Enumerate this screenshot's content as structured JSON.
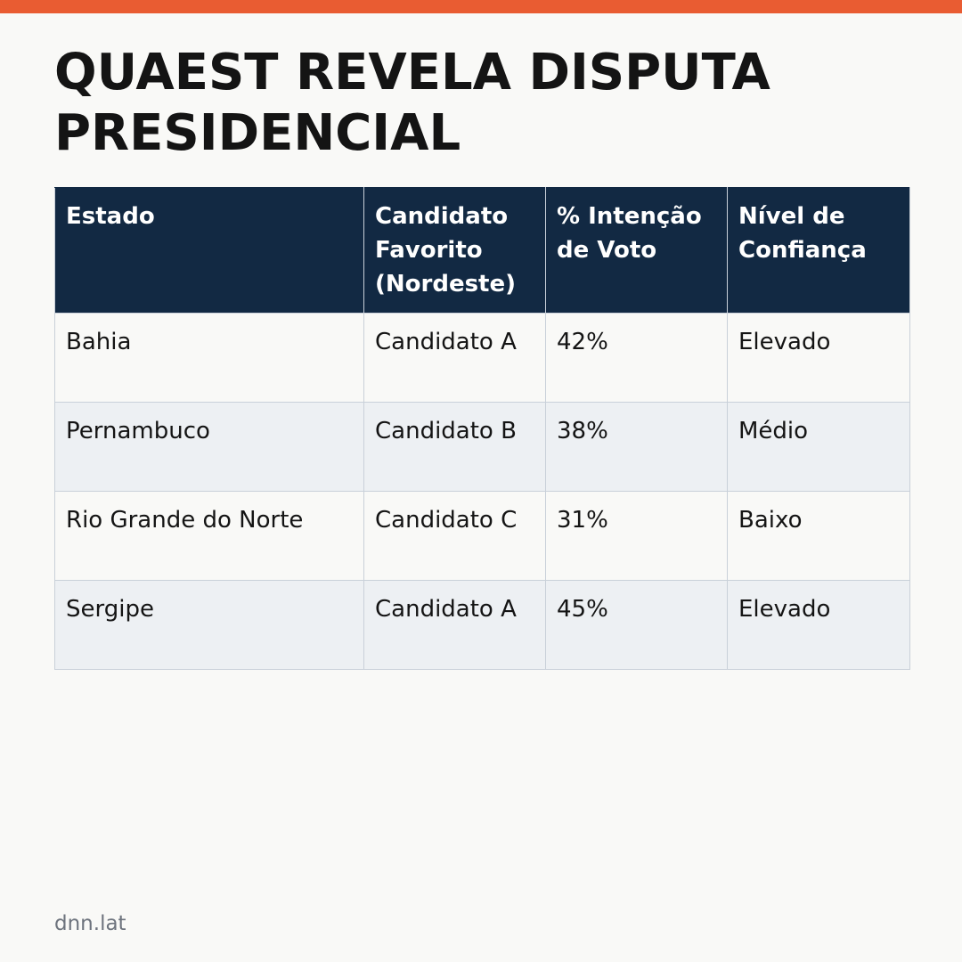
{
  "colors": {
    "accent_bar": "#e95c32",
    "header_bg": "#122943",
    "page_bg": "#f9f9f7",
    "row_alt_bg": "#edf0f3"
  },
  "headline": "QUAEST REVELA DISPUTA PRESIDENCIAL",
  "table": {
    "headers": [
      "Estado",
      "Candidato Favorito (Nordeste)",
      "% Intenção de Voto",
      "Nível de Confiança"
    ],
    "rows": [
      [
        "Bahia",
        "Candidato A",
        "42%",
        "Elevado"
      ],
      [
        "Pernambuco",
        "Candidato B",
        "38%",
        "Médio"
      ],
      [
        "Rio Grande do Norte",
        "Candidato C",
        "31%",
        "Baixo"
      ],
      [
        "Sergipe",
        "Candidato A",
        "45%",
        "Elevado"
      ]
    ]
  },
  "footer": {
    "source": "dnn.lat"
  }
}
